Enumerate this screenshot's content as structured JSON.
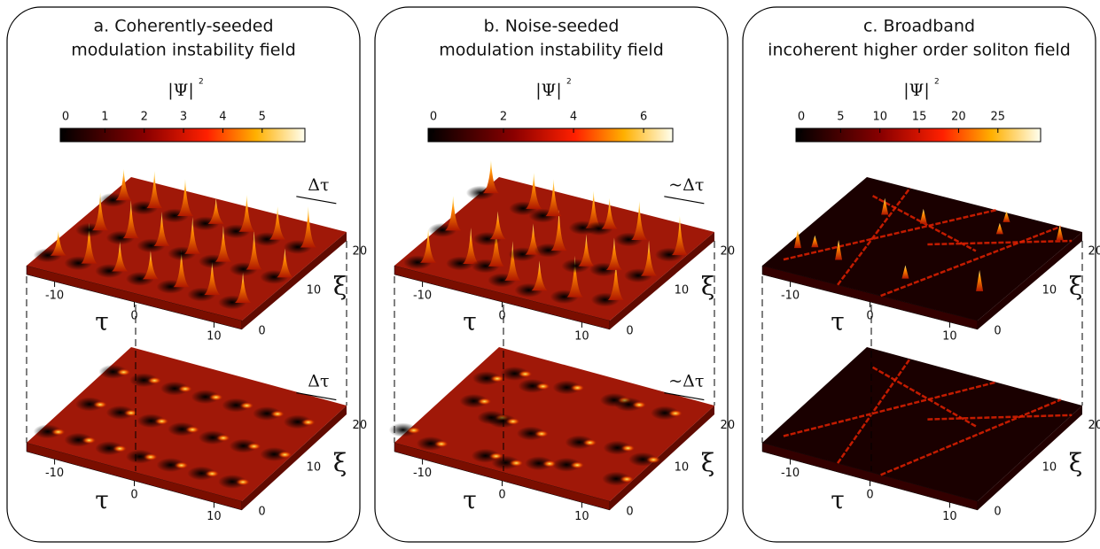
{
  "panels": [
    {
      "title_lines": [
        "a. Coherently-seeded",
        "modulation instability field"
      ],
      "colorbar": {
        "label": "|Ψ|",
        "exponent": "2",
        "ticks": [
          "0",
          "1",
          "2",
          "3",
          "4",
          "5"
        ]
      },
      "upper": {
        "tau_label": "τ",
        "xi_label": "ξ",
        "tau_ticks": [
          "-10",
          "0",
          "10"
        ],
        "xi_ticks": [
          "0",
          "10",
          "20"
        ],
        "annotation": "Δτ"
      },
      "lower": {
        "tau_label": "τ",
        "xi_label": "ξ",
        "tau_ticks": [
          "-10",
          "0",
          "10"
        ],
        "xi_ticks": [
          "0",
          "10",
          "20"
        ],
        "annotation": "Δτ"
      }
    },
    {
      "title_lines": [
        "b. Noise-seeded",
        "modulation instability field"
      ],
      "colorbar": {
        "label": "|Ψ|",
        "exponent": "2",
        "ticks": [
          "0",
          "2",
          "4",
          "6"
        ]
      },
      "upper": {
        "tau_label": "τ",
        "xi_label": "ξ",
        "tau_ticks": [
          "-10",
          "0",
          "10"
        ],
        "xi_ticks": [
          "0",
          "10",
          "20"
        ],
        "annotation": "~Δτ"
      },
      "lower": {
        "tau_label": "τ",
        "xi_label": "ξ",
        "tau_ticks": [
          "-10",
          "0",
          "10"
        ],
        "xi_ticks": [
          "0",
          "10",
          "20"
        ],
        "annotation": "~Δτ"
      }
    },
    {
      "title_lines": [
        "c. Broadband",
        "incoherent higher order soliton field"
      ],
      "colorbar": {
        "label": "|Ψ|",
        "exponent": "2",
        "ticks": [
          "0",
          "5",
          "10",
          "15",
          "20",
          "25"
        ]
      },
      "upper": {
        "tau_label": "τ",
        "xi_label": "ξ",
        "tau_ticks": [
          "-10",
          "0",
          "10"
        ],
        "xi_ticks": [
          "0",
          "10",
          "20"
        ]
      },
      "lower": {
        "tau_label": "τ",
        "xi_label": "ξ",
        "tau_ticks": [
          "-10",
          "0",
          "10"
        ],
        "xi_ticks": [
          "0",
          "10",
          "20"
        ]
      }
    }
  ]
}
